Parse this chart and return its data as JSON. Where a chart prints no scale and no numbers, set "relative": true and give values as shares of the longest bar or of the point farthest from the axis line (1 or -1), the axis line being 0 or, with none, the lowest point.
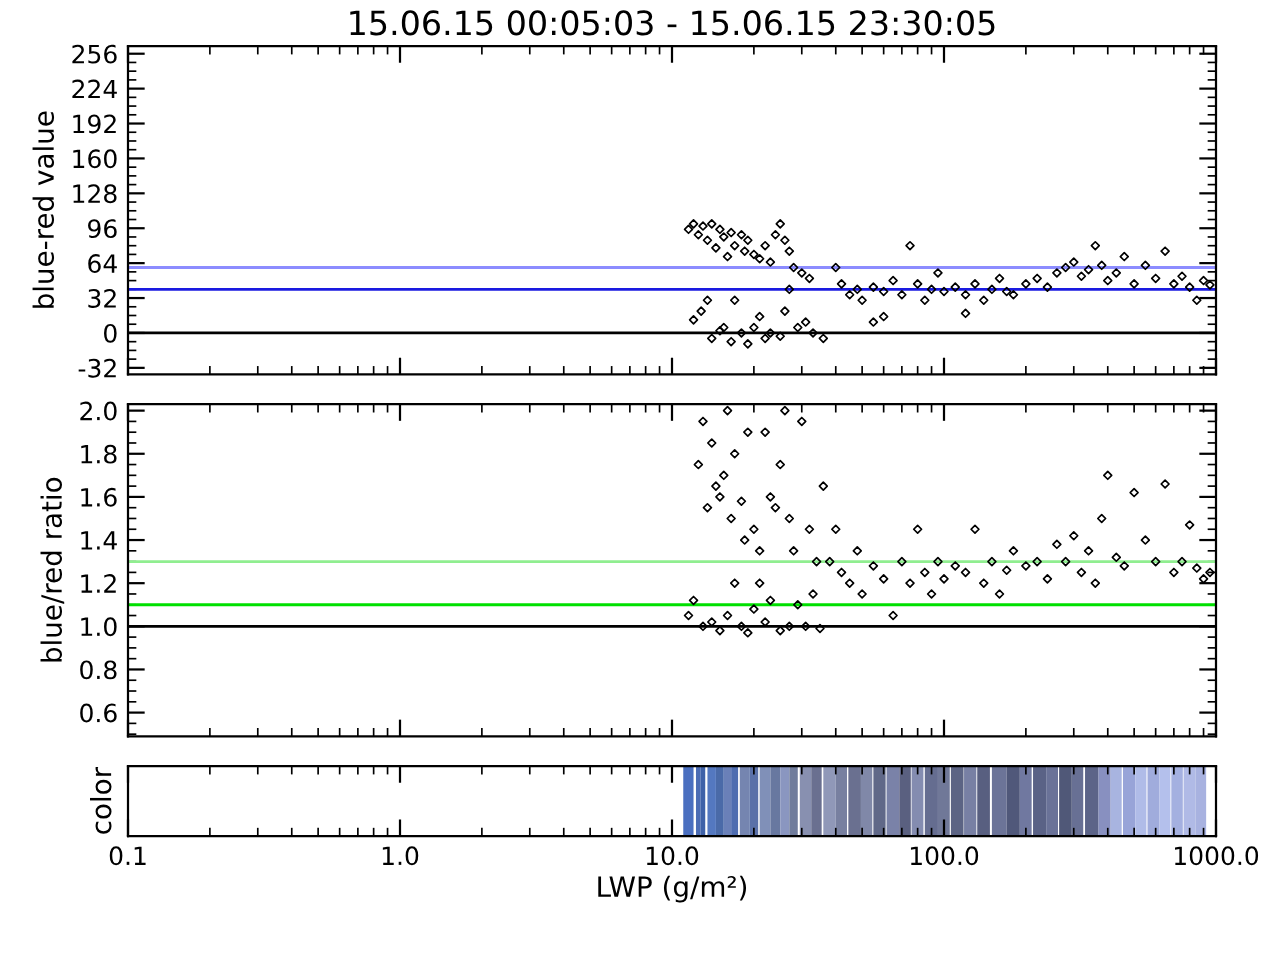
{
  "chart_data": [
    {
      "type": "scatter",
      "title": "15.06.15 00:05:03 - 15.06.15 23:30:05",
      "ylabel": "blue-red value",
      "log": "x",
      "marker": "diamond",
      "tick_labels": "y",
      "xlim": [
        0.1,
        1000
      ],
      "xticks": [
        {
          "value": 0.1,
          "label": null
        },
        {
          "value": 1,
          "label": null
        },
        {
          "value": 10,
          "label": null
        },
        {
          "value": 100,
          "label": null
        },
        {
          "value": 1000,
          "label": null
        }
      ],
      "ylim": [
        -38,
        263
      ],
      "yticks": [
        -32,
        0,
        32,
        64,
        96,
        128,
        160,
        192,
        224,
        256
      ],
      "ref_lines": [
        {
          "axis": "y",
          "value": 0,
          "color": "#000000"
        },
        {
          "axis": "y",
          "value": 40,
          "color": "#1a1ae0"
        },
        {
          "axis": "y",
          "value": 60,
          "color": "#8c8cff"
        }
      ],
      "series": [
        {
          "color": "#000000",
          "x": [
            11.5,
            12,
            12.5,
            13,
            13.5,
            14,
            14.5,
            15,
            15.5,
            16,
            16.5,
            17,
            18,
            18.5,
            19,
            20,
            21,
            22,
            23,
            24,
            25,
            26,
            27,
            28,
            30,
            32,
            12,
            12.8,
            13.5,
            14,
            15,
            15.5,
            16.5,
            17,
            18,
            19,
            20,
            21,
            22,
            23,
            25,
            26,
            27,
            29,
            31,
            33,
            36,
            40,
            42,
            45,
            48,
            50,
            55,
            60,
            65,
            70,
            75,
            80,
            85,
            90,
            95,
            100,
            110,
            120,
            130,
            140,
            150,
            160,
            170,
            180,
            200,
            220,
            240,
            260,
            280,
            300,
            320,
            340,
            360,
            380,
            400,
            430,
            460,
            500,
            550,
            600,
            650,
            700,
            750,
            800,
            850,
            900,
            950,
            55,
            60,
            120
          ],
          "values": [
            95,
            100,
            90,
            98,
            85,
            100,
            78,
            95,
            88,
            70,
            92,
            80,
            90,
            75,
            85,
            72,
            68,
            80,
            65,
            90,
            100,
            85,
            75,
            60,
            55,
            50,
            12,
            20,
            30,
            -5,
            2,
            5,
            -8,
            30,
            0,
            -10,
            5,
            15,
            -5,
            0,
            -3,
            20,
            40,
            5,
            10,
            0,
            -5,
            60,
            45,
            35,
            40,
            30,
            42,
            38,
            48,
            35,
            80,
            45,
            30,
            40,
            55,
            38,
            42,
            35,
            45,
            30,
            40,
            50,
            38,
            35,
            45,
            50,
            42,
            55,
            60,
            65,
            52,
            58,
            80,
            62,
            48,
            55,
            70,
            45,
            62,
            50,
            75,
            45,
            52,
            42,
            30,
            48,
            44,
            10,
            15,
            18
          ]
        }
      ]
    },
    {
      "type": "scatter",
      "ylabel": "blue/red ratio",
      "log": "x",
      "marker": "diamond",
      "tick_labels": "y",
      "xlim": [
        0.1,
        1000
      ],
      "xticks": [
        {
          "value": 0.1,
          "label": null
        },
        {
          "value": 1,
          "label": null
        },
        {
          "value": 10,
          "label": null
        },
        {
          "value": 100,
          "label": null
        },
        {
          "value": 1000,
          "label": null
        }
      ],
      "ylim": [
        0.49,
        2.03
      ],
      "yticks": [
        0.6,
        0.8,
        {
          "value": 1,
          "label": "1.0"
        },
        1.2,
        1.4,
        1.6,
        1.8,
        {
          "value": 2,
          "label": "2.0"
        }
      ],
      "ref_lines": [
        {
          "axis": "y",
          "value": 1.0,
          "color": "#000000"
        },
        {
          "axis": "y",
          "value": 1.1,
          "color": "#00e000"
        },
        {
          "axis": "y",
          "value": 1.3,
          "color": "#90ee90"
        }
      ],
      "series": [
        {
          "color": "#000000",
          "x": [
            11.5,
            12,
            12.5,
            13,
            13.5,
            14,
            14.5,
            15,
            15.5,
            16,
            16.5,
            17,
            18,
            18.5,
            19,
            20,
            21,
            22,
            23,
            24,
            25,
            26,
            27,
            28,
            30,
            32,
            34,
            36,
            13,
            14,
            15,
            16,
            17,
            18,
            19,
            20,
            21,
            22,
            23,
            25,
            27,
            29,
            31,
            33,
            35,
            38,
            40,
            42,
            45,
            48,
            50,
            55,
            60,
            65,
            70,
            75,
            80,
            85,
            90,
            95,
            100,
            110,
            120,
            130,
            140,
            150,
            160,
            170,
            180,
            200,
            220,
            240,
            260,
            280,
            300,
            320,
            340,
            360,
            380,
            400,
            430,
            460,
            500,
            550,
            600,
            650,
            700,
            750,
            800,
            850,
            900,
            950
          ],
          "values": [
            1.05,
            1.12,
            1.75,
            1.95,
            1.55,
            1.85,
            1.65,
            1.6,
            1.7,
            2.0,
            1.5,
            1.8,
            1.58,
            1.4,
            1.9,
            1.45,
            1.35,
            1.9,
            1.6,
            1.55,
            1.75,
            2.0,
            1.5,
            1.35,
            1.95,
            1.45,
            1.3,
            1.65,
            1.0,
            1.02,
            0.98,
            1.05,
            1.2,
            1.0,
            0.97,
            1.08,
            1.2,
            1.02,
            1.12,
            0.98,
            1.0,
            1.1,
            1.0,
            1.15,
            0.99,
            1.3,
            1.45,
            1.25,
            1.2,
            1.35,
            1.15,
            1.28,
            1.22,
            1.05,
            1.3,
            1.2,
            1.45,
            1.25,
            1.15,
            1.3,
            1.22,
            1.28,
            1.25,
            1.45,
            1.2,
            1.3,
            1.15,
            1.26,
            1.35,
            1.28,
            1.3,
            1.22,
            1.38,
            1.3,
            1.42,
            1.25,
            1.35,
            1.2,
            1.5,
            1.7,
            1.32,
            1.28,
            1.62,
            1.4,
            1.3,
            1.66,
            1.25,
            1.3,
            1.47,
            1.27,
            1.22,
            1.25
          ]
        }
      ]
    },
    {
      "type": "bar",
      "ylabel": "color",
      "xlabel": "LWP (g/m²)",
      "log": "x",
      "relative": true,
      "tick_labels": "x",
      "xlim": [
        0.1,
        1000
      ],
      "xticks": [
        {
          "value": 0.1,
          "label": "0.1"
        },
        {
          "value": 1,
          "label": "1.0"
        },
        {
          "value": 10,
          "label": "10.0"
        },
        {
          "value": 100,
          "label": "100.0"
        },
        {
          "value": 1000,
          "label": "1000.0"
        }
      ],
      "x": [
        11.5,
        12.5,
        13,
        14,
        15,
        16,
        17,
        18.5,
        20,
        22,
        24,
        26,
        28,
        31,
        34,
        38,
        42,
        47,
        52,
        58,
        65,
        72,
        80,
        90,
        100,
        112,
        125,
        140,
        160,
        180,
        200,
        225,
        250,
        280,
        310,
        350,
        390,
        430,
        480,
        530,
        590,
        650,
        720,
        800,
        880
      ],
      "values": [
        1,
        1,
        1,
        1,
        1,
        1,
        1,
        1,
        1,
        1,
        1,
        1,
        1,
        1,
        1,
        1,
        1,
        1,
        1,
        1,
        1,
        1,
        1,
        1,
        1,
        1,
        1,
        1,
        1,
        1,
        1,
        1,
        1,
        1,
        1,
        1,
        1,
        1,
        1,
        1,
        1,
        1,
        1,
        1,
        1
      ],
      "colors": [
        "#4a6fc0",
        "#4b6cb4",
        "#3f62a8",
        "#5478c0",
        "#4a6aa8",
        "#6a80b8",
        "#4e6cb0",
        "#7585b0",
        "#5a70a8",
        "#8090b8",
        "#6878a0",
        "#8a96c0",
        "#707c9c",
        "#8890b0",
        "#6a7090",
        "#9098b8",
        "#7880a0",
        "#6a7090",
        "#8088a8",
        "#606888",
        "#7a82a8",
        "#5a6080",
        "#848cb0",
        "#656d90",
        "#707898",
        "#5c6484",
        "#7880a4",
        "#585f80",
        "#6c7498",
        "#50587a",
        "#7078a0",
        "#5a6286",
        "#6a7298",
        "#505878",
        "#687094",
        "#5c6488",
        "#8890c0",
        "#a8b4e0",
        "#98a4d8",
        "#b0bce8",
        "#a0acdc",
        "#b4c0ec",
        "#a4b0e0",
        "#b0bae6",
        "#a8b2e0"
      ]
    }
  ]
}
